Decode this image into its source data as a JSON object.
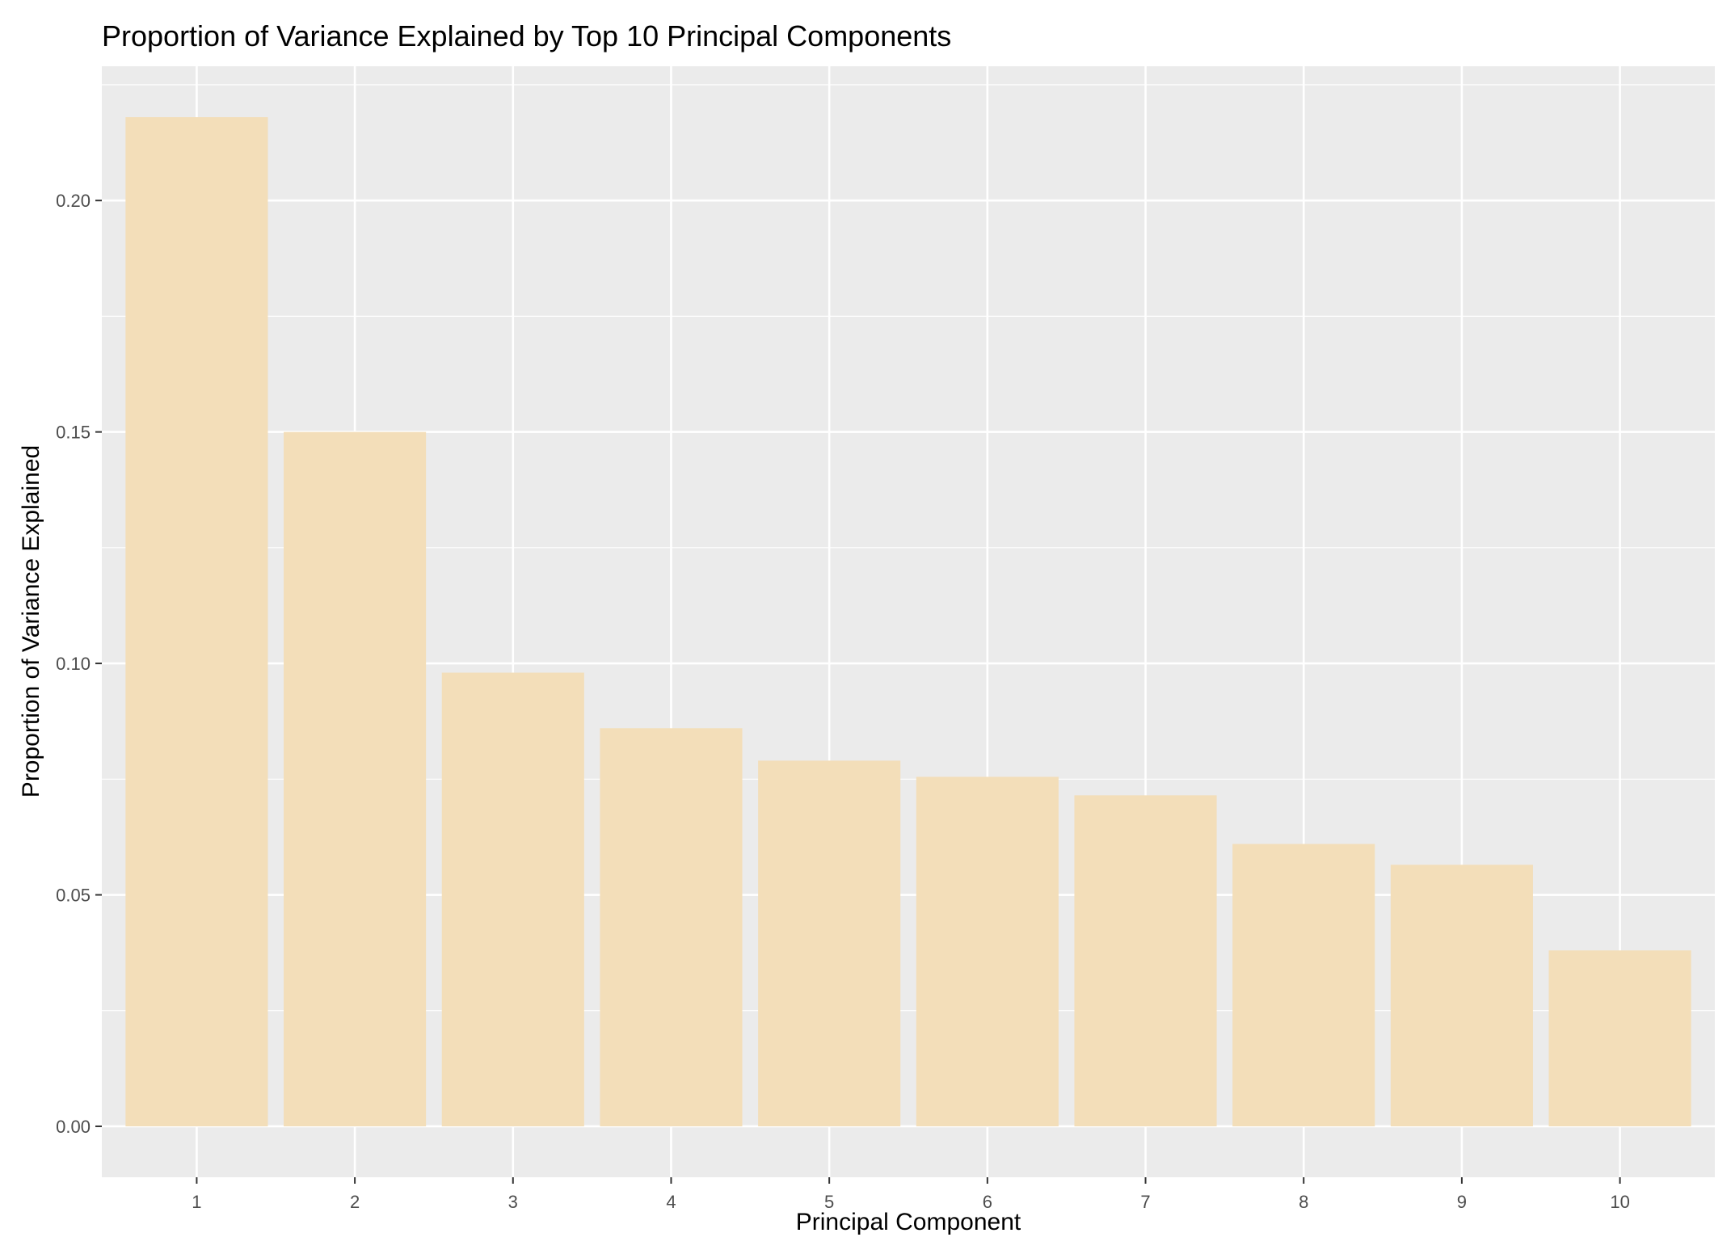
{
  "chart_data": {
    "type": "bar",
    "title": "Proportion of Variance Explained by Top 10 Principal Components",
    "xlabel": "Principal Component",
    "ylabel": "Proportion of Variance Explained",
    "categories": [
      "1",
      "2",
      "3",
      "4",
      "5",
      "6",
      "7",
      "8",
      "9",
      "10"
    ],
    "values": [
      0.218,
      0.15,
      0.098,
      0.086,
      0.079,
      0.0755,
      0.0715,
      0.061,
      0.0565,
      0.038
    ],
    "ylim": [
      -0.011,
      0.229
    ],
    "yticks": [
      0.0,
      0.05,
      0.1,
      0.15,
      0.2
    ],
    "ytick_labels": [
      "0.00",
      "0.05",
      "0.10",
      "0.15",
      "0.20"
    ],
    "grid": true,
    "legend": "none",
    "colors": {
      "bar": "#F3DEB9",
      "panel": "#EBEBEB",
      "grid": "#FFFFFF",
      "tick": "#333333",
      "tick_text": "#4D4D4D"
    }
  }
}
